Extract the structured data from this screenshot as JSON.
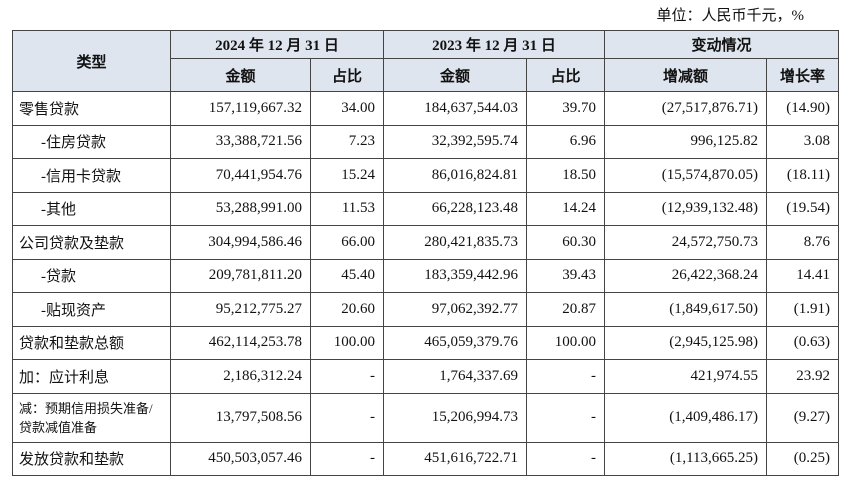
{
  "unit": "单位：人民币千元，%",
  "table": {
    "header": [
      "类型",
      "2024 年 12 月 31 日",
      "2023 年 12 月 31 日",
      "变动情况"
    ],
    "subheader": [
      "金额",
      "占比",
      "金额",
      "占比",
      "增减额",
      "增长率"
    ],
    "rows": [
      [
        "零售贷款",
        "157,119,667.32",
        "34.00",
        "184,637,544.03",
        "39.70",
        "(27,517,876.71)",
        "(14.90)"
      ],
      [
        "-住房贷款",
        "33,388,721.56",
        "7.23",
        "32,392,595.74",
        "6.96",
        "996,125.82",
        "3.08"
      ],
      [
        "-信用卡贷款",
        "70,441,954.76",
        "15.24",
        "86,016,824.81",
        "18.50",
        "(15,574,870.05)",
        "(18.11)"
      ],
      [
        "-其他",
        "53,288,991.00",
        "11.53",
        "66,228,123.48",
        "14.24",
        "(12,939,132.48)",
        "(19.54)"
      ],
      [
        "公司贷款及垫款",
        "304,994,586.46",
        "66.00",
        "280,421,835.73",
        "60.30",
        "24,572,750.73",
        "8.76"
      ],
      [
        "-贷款",
        "209,781,811.20",
        "45.40",
        "183,359,442.96",
        "39.43",
        "26,422,368.24",
        "14.41"
      ],
      [
        "-贴现资产",
        "95,212,775.27",
        "20.60",
        "97,062,392.77",
        "20.87",
        "(1,849,617.50)",
        "(1.91)"
      ],
      [
        "贷款和垫款总额",
        "462,114,253.78",
        "100.00",
        "465,059,379.76",
        "100.00",
        "(2,945,125.98)",
        "(0.63)"
      ],
      [
        "加：应计利息",
        "2,186,312.24",
        "-",
        "1,764,337.69",
        "-",
        "421,974.55",
        "23.92"
      ],
      [
        "减：预期信用损失准备/贷款减值准备",
        "13,797,508.56",
        "-",
        "15,206,994.73",
        "-",
        "(1,409,486.17)",
        "(9.27)"
      ],
      [
        "发放贷款和垫款",
        "450,503,057.46",
        "-",
        "451,616,722.71",
        "-",
        "(1,113,665.25)",
        "(0.25)"
      ]
    ]
  }
}
